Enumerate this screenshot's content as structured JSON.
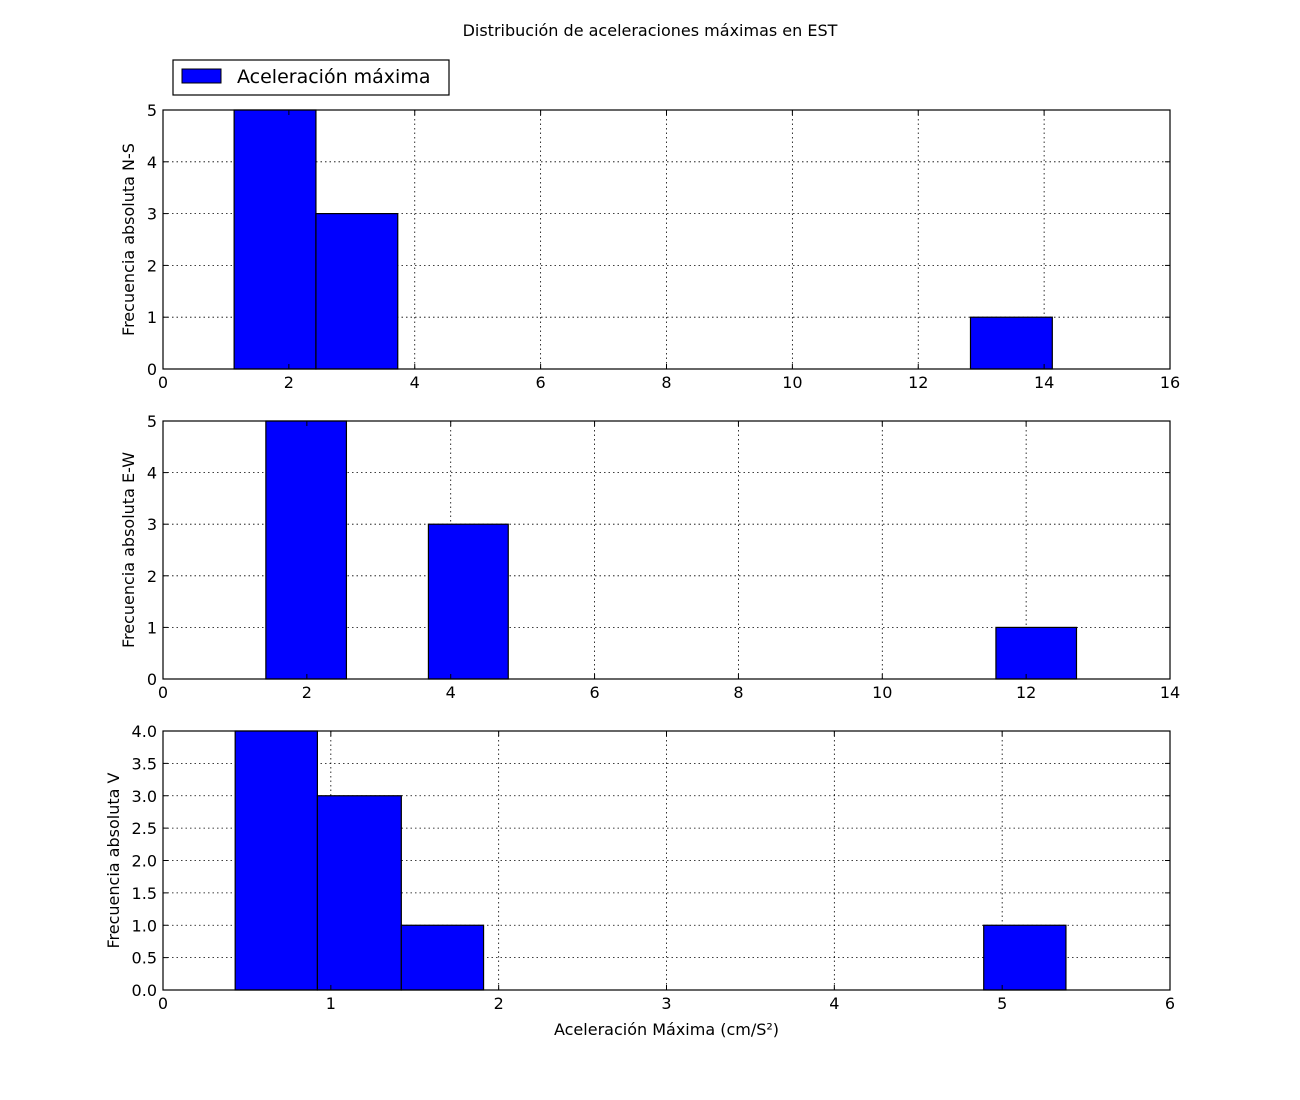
{
  "figure": {
    "title": "Distribución de aceleraciones máximas en EST",
    "legend": {
      "label": "Aceleración máxima",
      "placement": "upper-left, above first panel",
      "color": "#0000ff"
    }
  },
  "colors": {
    "bar_fill": "#0000ff",
    "bar_edge": "#000000",
    "grid": "#000000",
    "axis": "#000000"
  },
  "chart_data": [
    {
      "type": "bar",
      "subtype": "histogram",
      "xlabel": "",
      "ylabel": "Frecuencia absoluta N-S",
      "xlim": [
        0,
        16
      ],
      "ylim": [
        0,
        5
      ],
      "xticks": [
        0,
        2,
        4,
        6,
        8,
        10,
        12,
        14,
        16
      ],
      "yticks": [
        0,
        1,
        2,
        3,
        4,
        5
      ],
      "xtick_labels": [
        "0",
        "2",
        "4",
        "6",
        "8",
        "10",
        "12",
        "14",
        "16"
      ],
      "ytick_labels": [
        "0",
        "1",
        "2",
        "3",
        "4",
        "5"
      ],
      "grid": true,
      "bins": [
        {
          "x0": 1.13,
          "x1": 2.43,
          "count": 5
        },
        {
          "x0": 2.43,
          "x1": 3.73,
          "count": 3
        },
        {
          "x0": 12.83,
          "x1": 14.13,
          "count": 1
        }
      ]
    },
    {
      "type": "bar",
      "subtype": "histogram",
      "xlabel": "",
      "ylabel": "Frecuencia absoluta E-W",
      "xlim": [
        0,
        14
      ],
      "ylim": [
        0,
        5
      ],
      "xticks": [
        0,
        2,
        4,
        6,
        8,
        10,
        12,
        14
      ],
      "yticks": [
        0,
        1,
        2,
        3,
        4,
        5
      ],
      "xtick_labels": [
        "0",
        "2",
        "4",
        "6",
        "8",
        "10",
        "12",
        "14"
      ],
      "ytick_labels": [
        "0",
        "1",
        "2",
        "3",
        "4",
        "5"
      ],
      "grid": true,
      "bins": [
        {
          "x0": 1.43,
          "x1": 2.55,
          "count": 5
        },
        {
          "x0": 3.69,
          "x1": 4.8,
          "count": 3
        },
        {
          "x0": 11.58,
          "x1": 12.7,
          "count": 1
        }
      ]
    },
    {
      "type": "bar",
      "subtype": "histogram",
      "xlabel": "Aceleración Máxima (cm/S²)",
      "ylabel": "Frecuencia absoluta V",
      "xlim": [
        0,
        6
      ],
      "ylim": [
        0,
        4
      ],
      "xticks": [
        0,
        1,
        2,
        3,
        4,
        5,
        6
      ],
      "yticks": [
        0,
        0.5,
        1,
        1.5,
        2,
        2.5,
        3,
        3.5,
        4
      ],
      "xtick_labels": [
        "0",
        "1",
        "2",
        "3",
        "4",
        "5",
        "6"
      ],
      "ytick_labels": [
        "0.0",
        "0.5",
        "1.0",
        "1.5",
        "2.0",
        "2.5",
        "3.0",
        "3.5",
        "4.0"
      ],
      "grid": true,
      "bins": [
        {
          "x0": 0.43,
          "x1": 0.92,
          "count": 4
        },
        {
          "x0": 0.92,
          "x1": 1.42,
          "count": 3
        },
        {
          "x0": 1.42,
          "x1": 1.91,
          "count": 1
        },
        {
          "x0": 4.89,
          "x1": 5.38,
          "count": 1
        }
      ]
    }
  ]
}
